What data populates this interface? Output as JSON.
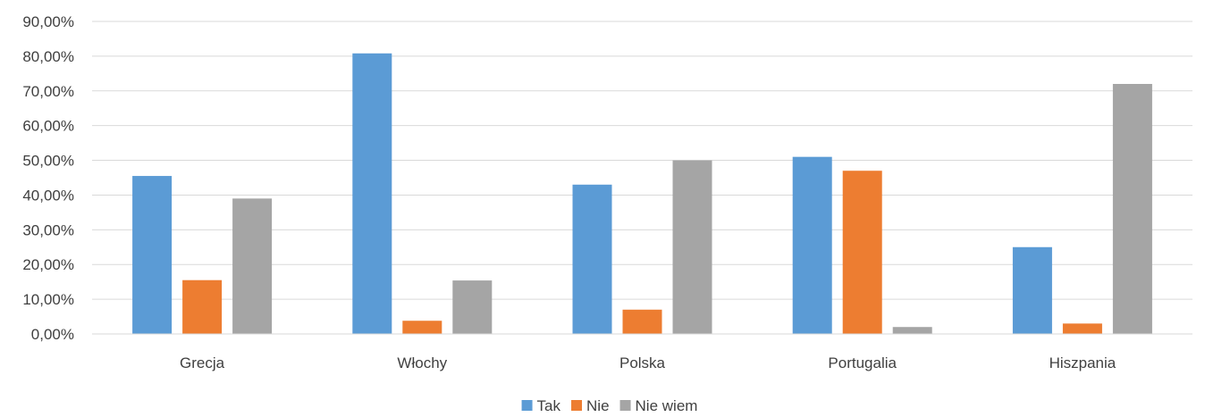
{
  "chart_data": {
    "type": "bar",
    "title": "",
    "xlabel": "",
    "ylabel": "",
    "categories": [
      "Grecja",
      "Włochy",
      "Polska",
      "Portugalia",
      "Hiszpania"
    ],
    "series": [
      {
        "name": "Tak",
        "color": "#5B9BD5",
        "values": [
          45.5,
          80.8,
          43.0,
          51.0,
          25.0
        ]
      },
      {
        "name": "Nie",
        "color": "#ED7D31",
        "values": [
          15.5,
          3.8,
          7.0,
          47.0,
          3.0
        ]
      },
      {
        "name": "Nie wiem",
        "color": "#A5A5A5",
        "values": [
          39.0,
          15.4,
          50.0,
          2.0,
          72.0
        ]
      }
    ],
    "ylim": [
      0,
      90
    ],
    "ytick_step": 10,
    "ytick_labels": [
      "0,00%",
      "10,00%",
      "20,00%",
      "30,00%",
      "40,00%",
      "50,00%",
      "60,00%",
      "70,00%",
      "80,00%",
      "90,00%"
    ],
    "grid": true,
    "legend_position": "bottom"
  }
}
